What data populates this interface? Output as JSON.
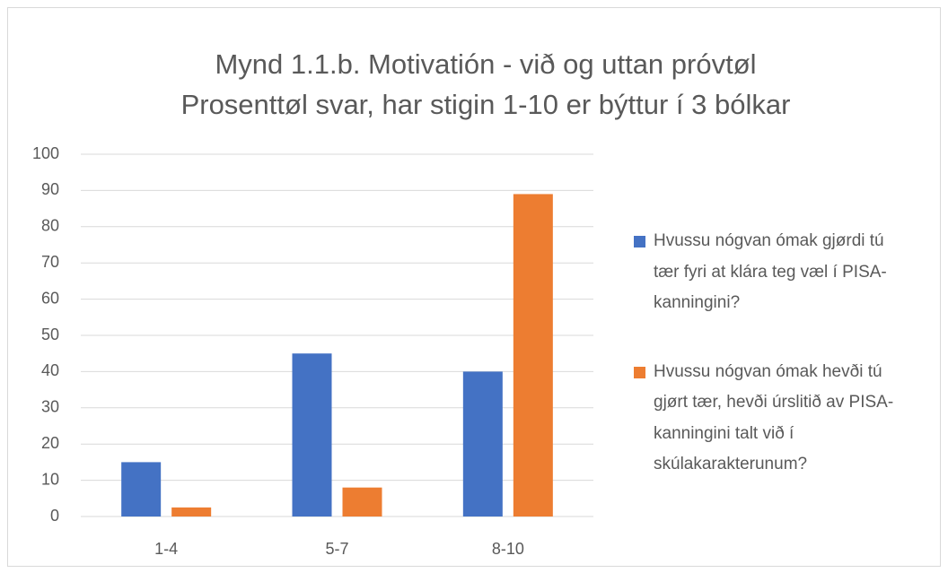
{
  "chart_data": {
    "type": "bar",
    "title": [
      "Mynd 1.1.b. Motivatión - við og uttan próvtøl",
      "Prosenttøl svar, har stigin 1-10 er býttur í 3 bólkar"
    ],
    "categories": [
      "1-4",
      "5-7",
      "8-10"
    ],
    "series": [
      {
        "name": "Hvussu nógvan ómak gjørdi tú tær fyri at klára teg væl í PISA-kanningini?",
        "color": "#4472c4",
        "values": [
          15,
          45,
          40
        ]
      },
      {
        "name": "Hvussu nógvan ómak hevði tú gjørt tær, hevði úrslitið av PISA-kanningini talt við í skúlakarakterunum?",
        "color": "#ed7d31",
        "values": [
          2.5,
          8,
          89
        ]
      }
    ],
    "ylim": [
      0,
      100
    ],
    "yticks": [
      0,
      10,
      20,
      30,
      40,
      50,
      60,
      70,
      80,
      90,
      100
    ],
    "grid": true,
    "legend": "right"
  }
}
